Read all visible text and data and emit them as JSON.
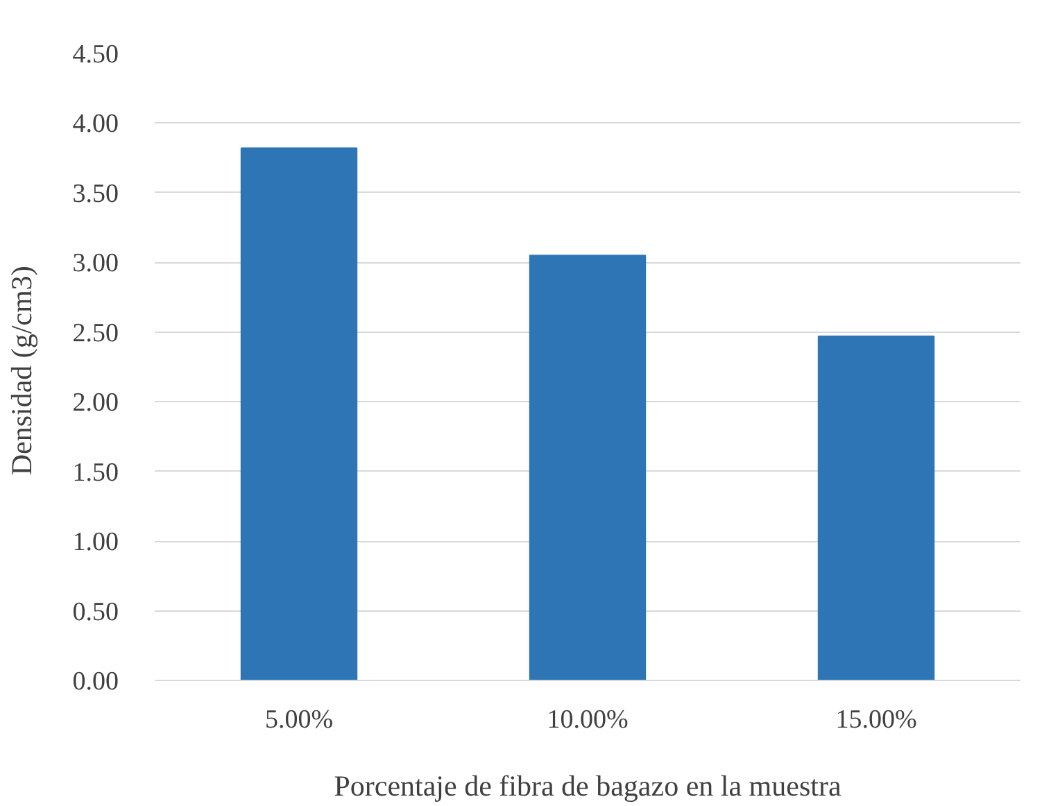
{
  "chart_data": {
    "type": "bar",
    "xlabel": "Porcentaje de fibra de bagazo en la muestra",
    "ylabel": "Densidad  (g/cm3)",
    "categories": [
      "5.00%",
      "10.00%",
      "15.00%"
    ],
    "values": [
      3.82,
      3.05,
      2.47
    ],
    "color": "#2e75b6",
    "ylim": [
      0,
      4.5
    ],
    "yticks": [
      {
        "value": 0,
        "label": "0.00"
      },
      {
        "value": 0.5,
        "label": "0.50"
      },
      {
        "value": 1,
        "label": "1.00"
      },
      {
        "value": 1.5,
        "label": "1.50"
      },
      {
        "value": 2,
        "label": "2.00"
      },
      {
        "value": 2.5,
        "label": "2.50"
      },
      {
        "value": 3,
        "label": "3.00"
      },
      {
        "value": 3.5,
        "label": "3.50"
      },
      {
        "value": 4,
        "label": "4.00"
      },
      {
        "value": 4.5,
        "label": "4.50"
      }
    ],
    "grid": "y"
  }
}
